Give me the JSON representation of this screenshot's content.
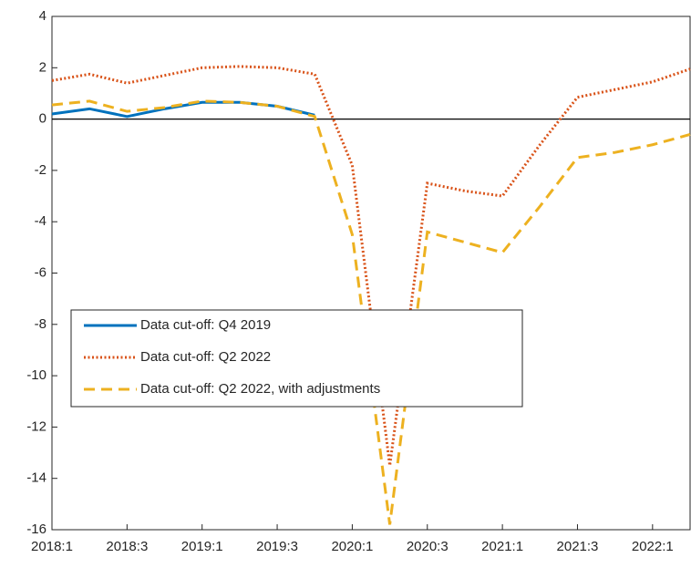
{
  "chart_data": {
    "type": "line",
    "categories": [
      "2018:1",
      null,
      "2018:3",
      null,
      "2019:1",
      null,
      "2019:3",
      null,
      "2020:1",
      null,
      "2020:3",
      null,
      "2021:1",
      null,
      "2021:3",
      null,
      "2022:1",
      null
    ],
    "series": [
      {
        "name": "Data cut-off: Q4 2019",
        "color": "#0072BD",
        "style": "solid",
        "values": [
          0.2,
          0.4,
          0.1,
          0.4,
          0.65,
          0.65,
          0.5,
          0.15,
          null,
          null,
          null,
          null,
          null,
          null,
          null,
          null,
          null,
          null
        ]
      },
      {
        "name": "Data cut-off: Q2 2022",
        "color": "#D95319",
        "style": "dotted",
        "values": [
          1.5,
          1.75,
          1.4,
          1.7,
          2.0,
          2.05,
          2.0,
          1.75,
          -1.8,
          -13.5,
          -2.5,
          -2.8,
          -3.0,
          -1.0,
          0.85,
          1.15,
          1.45,
          1.95
        ]
      },
      {
        "name": "Data cut-off: Q2 2022, with adjustments",
        "color": "#EDB120",
        "style": "dashed",
        "values": [
          0.55,
          0.7,
          0.3,
          0.45,
          0.7,
          0.65,
          0.5,
          0.1,
          -4.5,
          -15.8,
          -4.4,
          -4.8,
          -5.2,
          -3.4,
          -1.5,
          -1.3,
          -1.0,
          -0.6
        ]
      }
    ],
    "ylim": [
      -16,
      4
    ],
    "yticks": [
      -16,
      -14,
      -12,
      -10,
      -8,
      -6,
      -4,
      -2,
      0,
      2,
      4
    ],
    "legend": "lower-left"
  }
}
